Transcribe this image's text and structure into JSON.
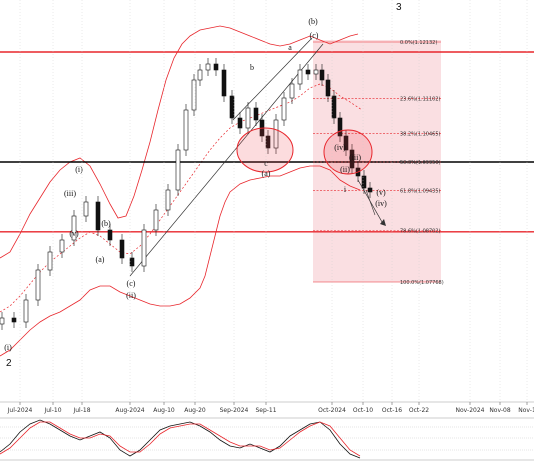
{
  "chart_data": {
    "type": "candlestick",
    "title": "",
    "xlabel": "",
    "ylabel": "",
    "x_ticks": [
      "Jul-2024",
      "Jul-10",
      "Jul-18",
      "Aug-2024",
      "Aug-10",
      "Aug-20",
      "Sep-2024",
      "Sep-11",
      "Oct-2024",
      "Oct-10",
      "Oct-16",
      "Oct-22",
      "Nov-2024",
      "Nov-08",
      "Nov-1"
    ],
    "fibonacci_levels": [
      {
        "ratio": "0.0%",
        "label": "0.0%(1.12132)",
        "price": 1.12132
      },
      {
        "ratio": "23.6%",
        "label": "23.6%(1.11102)",
        "price": 1.11102
      },
      {
        "ratio": "38.2%",
        "label": "38.2%(1.10465)",
        "price": 1.10465
      },
      {
        "ratio": "50.0%",
        "label": "50.0%(1.09950)",
        "price": 1.0995
      },
      {
        "ratio": "61.8%",
        "label": "61.8%(1.09435)",
        "price": 1.09435
      },
      {
        "ratio": "78.6%",
        "label": "78.6%(1.08702)",
        "price": 1.08702
      },
      {
        "ratio": "100.0%",
        "label": "100.0%(1.07768)",
        "price": 1.07768
      }
    ],
    "horizontal_levels": [
      {
        "price": 1.1195,
        "color": "#e8262c"
      },
      {
        "price": 1.0995,
        "color": "#000000"
      },
      {
        "price": 1.0868,
        "color": "#e8262c"
      }
    ],
    "wave_labels": [
      "(b)",
      "(c)",
      "(iv)",
      "(v)",
      "a",
      "b",
      "c",
      "(a)",
      "i",
      "(ii)",
      "(iii)",
      "(iv)",
      "(i)",
      "(iii)",
      "(v)",
      "(b)",
      "(a)",
      "(c)",
      "(ii)",
      "(i)",
      "2",
      "3"
    ],
    "colors": {
      "bollinger": "#e8262c",
      "fib_zone": "#f7d4d8",
      "candle_up": "#ffffff",
      "candle_down": "#000000"
    },
    "series": []
  }
}
